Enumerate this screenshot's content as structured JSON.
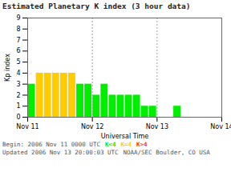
{
  "chart_data": {
    "type": "bar",
    "title": "Estimated Planetary K index (3 hour data)",
    "xlabel": "Universal Time",
    "ylabel": "Kp index",
    "categories": [
      null,
      null,
      null,
      null,
      null,
      null,
      null,
      null,
      null,
      null,
      null,
      null,
      null,
      null,
      null,
      null,
      null,
      null,
      null,
      null,
      null,
      null,
      null,
      null
    ],
    "values": [
      3,
      4,
      4,
      4,
      4,
      4,
      3,
      3,
      2,
      3,
      2,
      2,
      2,
      2,
      1,
      1,
      0,
      0,
      1,
      0,
      0,
      0,
      0,
      0
    ],
    "colors": [
      "#00ee00",
      "#ffcc00",
      "#ffcc00",
      "#ffcc00",
      "#ffcc00",
      "#ffcc00",
      "#00ee00",
      "#00ee00",
      "#00ee00",
      "#00ee00",
      "#00ee00",
      "#00ee00",
      "#00ee00",
      "#00ee00",
      "#00ee00",
      "#00ee00",
      "#00ee00",
      "#00ee00",
      "#00ee00",
      "#00ee00",
      "#00ee00",
      "#00ee00",
      "#00ee00",
      "#00ee00"
    ],
    "xticks": [
      {
        "value": 0,
        "label": "Nov 11"
      },
      {
        "value": 8,
        "label": "Nov 12"
      },
      {
        "value": 16,
        "label": "Nov 13"
      },
      {
        "value": 24,
        "label": "Nov 14"
      }
    ],
    "ylim": [
      0,
      9
    ],
    "yticks": [
      0,
      1,
      2,
      3,
      4,
      5,
      6,
      7,
      8,
      9
    ],
    "grid": "x",
    "annotations": [
      {
        "text": "Begin:  2006 Nov 11 0000 UTC"
      },
      {
        "text": "K<4",
        "color": "#00ee00"
      },
      {
        "text": "K=4",
        "color": "#ffcc00"
      },
      {
        "text": "K>4",
        "color": "#ff3300"
      },
      {
        "text": "Updated 2006 Nov 13 20:00:03 UTC"
      },
      {
        "text": "NOAA/SEC Boulder, CO USA"
      }
    ]
  }
}
